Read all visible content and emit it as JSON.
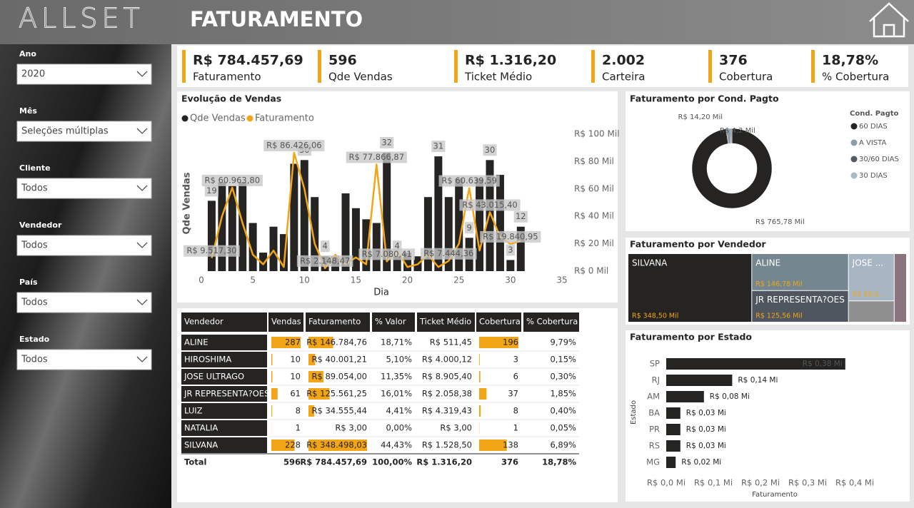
{
  "header": {
    "logo": "ALLSET",
    "title": "FATURAMENTO"
  },
  "filters": [
    {
      "label": "Ano",
      "value": "2020"
    },
    {
      "label": "Mês",
      "value": "Seleções múltiplas"
    },
    {
      "label": "Cliente",
      "value": "Todos"
    },
    {
      "label": "Vendedor",
      "value": "Todos"
    },
    {
      "label": "País",
      "value": "Todos"
    },
    {
      "label": "Estado",
      "value": "Todos"
    }
  ],
  "kpis": [
    {
      "value": "R$ 784.457,69",
      "label": "Faturamento"
    },
    {
      "value": "596",
      "label": "Qde Vendas"
    },
    {
      "value": "R$ 1.316,20",
      "label": "Ticket Médio"
    },
    {
      "value": "2.002",
      "label": "Carteira"
    },
    {
      "value": "376",
      "label": "Cobertura"
    },
    {
      "value": "18,78%",
      "label": "% Cobertura"
    }
  ],
  "table": {
    "columns": [
      "Vendedor",
      "Vendas",
      "Faturamento",
      "% Valor",
      "Ticket Médio",
      "Cobertura",
      "% Cobertura"
    ],
    "rows": [
      {
        "vendedor": "ALINE",
        "vendas": 287,
        "faturamento": {
          "value": 146784.76,
          "label": "R$ 146.784,76"
        },
        "pct_valor": "18,71%",
        "ticket_medio": "R$ 511,45",
        "cobertura": 196,
        "pct_cobertura": "9,79%"
      },
      {
        "vendedor": "HIROSHIMA",
        "vendas": 10,
        "faturamento": {
          "value": 40001.21,
          "label": "R$ 40.001,21"
        },
        "pct_valor": "5,10%",
        "ticket_medio": "R$ 4.000,12",
        "cobertura": 3,
        "pct_cobertura": "0,15%"
      },
      {
        "vendedor": "JOSE ULTRAGO",
        "vendas": 10,
        "faturamento": {
          "value": 89054,
          "label": "R$ 89.054,00"
        },
        "pct_valor": "11,35%",
        "ticket_medio": "R$ 8.905,40",
        "cobertura": 6,
        "pct_cobertura": "0,30%"
      },
      {
        "vendedor": "JR REPRESENTA?OES",
        "vendas": 61,
        "faturamento": {
          "value": 125561.25,
          "label": "R$ 125.561,25"
        },
        "pct_valor": "16,01%",
        "ticket_medio": "R$ 2.058,38",
        "cobertura": 37,
        "pct_cobertura": "1,85%"
      },
      {
        "vendedor": "LUIZ",
        "vendas": 8,
        "faturamento": {
          "value": 34555.44,
          "label": "R$ 34.555,44"
        },
        "pct_valor": "4,41%",
        "ticket_medio": "R$ 4.319,43",
        "cobertura": 8,
        "pct_cobertura": "0,40%"
      },
      {
        "vendedor": "NATALIA",
        "vendas": 1,
        "faturamento": {
          "value": 3,
          "label": "R$ 3,00"
        },
        "pct_valor": "0,00%",
        "ticket_medio": "R$ 3,00",
        "cobertura": 1,
        "pct_cobertura": "0,05%"
      },
      {
        "vendedor": "SILVANA",
        "vendas": 228,
        "faturamento": {
          "value": 348498.03,
          "label": "R$ 348.498,03"
        },
        "pct_valor": "44,43%",
        "ticket_medio": "R$ 1.528,50",
        "cobertura": 138,
        "pct_cobertura": "6,89%"
      }
    ],
    "total": {
      "vendedor": "Total",
      "vendas": 596,
      "faturamento": "R$ 784.457,69",
      "pct_valor": "100,00%",
      "ticket_medio": "R$ 1.316,20",
      "cobertura": 376,
      "pct_cobertura": "18,78%"
    }
  },
  "chart_data": [
    {
      "type": "combo",
      "title": "Evolução de Vendas",
      "xlabel": "Dia",
      "ylabel": "Qde Vendas",
      "x": [
        1,
        2,
        3,
        4,
        5,
        6,
        7,
        8,
        9,
        10,
        11,
        12,
        13,
        14,
        15,
        16,
        17,
        18,
        19,
        20,
        21,
        22,
        23,
        24,
        25,
        26,
        27,
        28,
        29,
        30,
        31
      ],
      "xlim": [
        0,
        35
      ],
      "xticks": [
        0,
        5,
        10,
        15,
        20,
        25,
        30,
        35
      ],
      "ylim": [
        0,
        37
      ],
      "y2lim": [
        0,
        100
      ],
      "y2ticks": [
        {
          "value": 0,
          "label": "R$ 0 Mil"
        },
        {
          "value": 20,
          "label": "R$ 20 Mil"
        },
        {
          "value": 40,
          "label": "R$ 40 Mil"
        },
        {
          "value": 60,
          "label": "R$ 60 Mil"
        },
        {
          "value": 80,
          "label": "R$ 80 Mil"
        },
        {
          "value": 100,
          "label": "R$ 100 Mil"
        }
      ],
      "series": [
        {
          "name": "Qde Vendas",
          "color": "#252423",
          "kind": "bar",
          "values": [
            19,
            24,
            23,
            24,
            13,
            5,
            12,
            10,
            29,
            30,
            20,
            4,
            4,
            21,
            17,
            14,
            13,
            32,
            4,
            5,
            4,
            20,
            31,
            20,
            25,
            9,
            25,
            30,
            26,
            3,
            12
          ],
          "value_labels": [
            "19",
            null,
            null,
            null,
            null,
            null,
            null,
            null,
            null,
            "30",
            null,
            "4",
            null,
            null,
            null,
            null,
            null,
            "32",
            "4",
            null,
            null,
            null,
            "31",
            null,
            null,
            "9",
            null,
            "30",
            null,
            "3",
            "12"
          ]
        },
        {
          "name": "Faturamento",
          "color": "#f2a516",
          "kind": "line",
          "axis": "y2",
          "values": [
            9.5173,
            40,
            60.9638,
            35,
            12,
            5,
            15,
            3,
            86.42606,
            60,
            20,
            2.14847,
            12,
            5,
            10,
            5,
            77.86687,
            7.08041,
            15,
            3,
            5,
            12,
            3,
            7.44436,
            20,
            60.63959,
            15,
            43.0154,
            25,
            19.84095,
            22
          ],
          "value_labels": [
            "R$ 9.517,30",
            null,
            "R$ 60.963,80",
            null,
            null,
            null,
            null,
            null,
            "R$ 86.426,06",
            null,
            null,
            "R$ 2.148,47",
            null,
            null,
            null,
            null,
            "R$ 77.866,87",
            "R$ 7.080,41",
            null,
            null,
            null,
            null,
            null,
            "R$ 7.444,36",
            null,
            "R$ 60.639,59",
            null,
            "R$ 43.015,40",
            null,
            "R$ 19.840,95",
            null
          ]
        }
      ]
    },
    {
      "type": "donut",
      "title": "Faturamento por Cond. Pagto",
      "legend_title": "Cond. Pagto",
      "categories": [
        "60 DIAS",
        "A VISTA",
        "30/60 DIAS",
        "30 DIAS"
      ],
      "values": [
        765.78,
        14.2,
        4.2,
        0.28
      ],
      "value_labels": [
        "R$ 765,78 Mil",
        "R$ 14,20 Mil",
        "R$ 4,2 Mil",
        null
      ],
      "colors": [
        "#252423",
        "#8a9eab",
        "#555b63",
        "#a9b9c6"
      ]
    },
    {
      "type": "treemap",
      "title": "Faturamento por Vendedor",
      "categories": [
        "SILVANA",
        "ALINE",
        "JR REPRESENTA?OES",
        "JOSE ...",
        null,
        null
      ],
      "values": [
        348.5,
        146.78,
        125.56,
        89.05,
        40,
        34.56
      ],
      "value_labels": [
        "R$ 348,50 Mil",
        "R$ 146,78 Mil",
        "R$ 125,56 Mil",
        "R$ 89,0...",
        null,
        null
      ],
      "colors": [
        "#252423",
        "#74868f",
        "#4f5660",
        "#a8b5c2",
        "#8f8f8f",
        "#8a7480"
      ]
    },
    {
      "type": "hbar",
      "title": "Faturamento por Estado",
      "xlabel": "Faturamento",
      "ylabel": "Estado",
      "categories": [
        "SP",
        "RJ",
        "AM",
        "BA",
        "PR",
        "RS",
        "MG"
      ],
      "values": [
        0.38,
        0.14,
        0.08,
        0.03,
        0.03,
        0.03,
        0.02
      ],
      "value_labels": [
        "R$ 0,38 Mi",
        "R$ 0,14 Mi",
        "R$ 0,08 Mi",
        "R$ 0,03 Mi",
        "R$ 0,03 Mi",
        "R$ 0,03 Mi",
        "R$ 0,02 Mi"
      ],
      "color": "#252423",
      "xlim": [
        0,
        0.42
      ],
      "xticks": [
        {
          "value": 0,
          "label": "R$ 0,0 Mi"
        },
        {
          "value": 0.1,
          "label": "R$ 0,1 Mi"
        },
        {
          "value": 0.2,
          "label": "R$ 0,2 Mi"
        },
        {
          "value": 0.3,
          "label": "R$ 0,3 Mi"
        },
        {
          "value": 0.4,
          "label": "R$ 0,4 Mi"
        }
      ]
    }
  ]
}
